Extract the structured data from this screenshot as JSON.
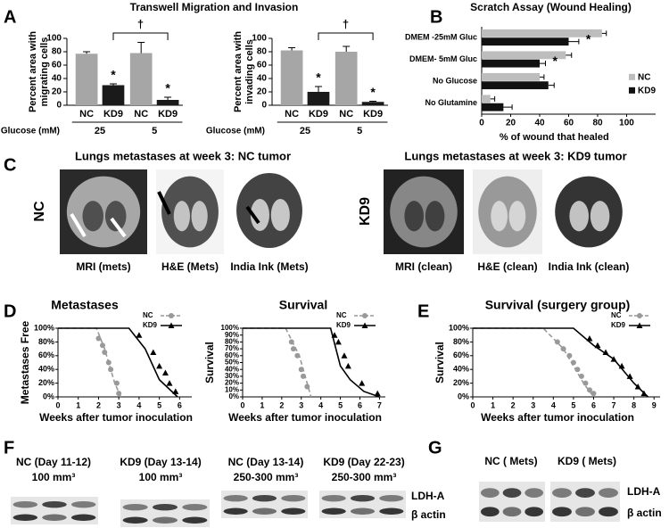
{
  "panel_labels": [
    "A",
    "B",
    "C",
    "D",
    "E",
    "F",
    "G"
  ],
  "panel_a_title": "Transwell Migration and Invasion",
  "chart_data": [
    {
      "type": "bar",
      "y_label": [
        "Percent area with",
        "migrating cells"
      ],
      "categories": [
        "NC",
        "KD9",
        "NC",
        "KD9"
      ],
      "values": [
        77,
        30,
        78,
        8
      ],
      "errors": [
        3,
        2,
        16,
        4
      ],
      "colors": [
        "#a6a6a6",
        "#1a1a1a",
        "#a6a6a6",
        "#1a1a1a"
      ],
      "groups": [
        "25",
        "5"
      ],
      "group_label": "Glucose (mM)",
      "annotations": [
        "*",
        "*",
        "†"
      ],
      "ylim": [
        0,
        100
      ],
      "yticks": [
        0,
        20,
        40,
        60,
        80,
        100
      ]
    },
    {
      "type": "bar",
      "y_label": [
        "Percent area with",
        "invading cells"
      ],
      "categories": [
        "NC",
        "KD9",
        "NC",
        "KD9"
      ],
      "values": [
        82,
        20,
        80,
        5
      ],
      "errors": [
        4,
        8,
        8,
        1
      ],
      "colors": [
        "#a6a6a6",
        "#1a1a1a",
        "#a6a6a6",
        "#1a1a1a"
      ],
      "groups": [
        "25",
        "5"
      ],
      "group_label": "Glucose (mM)",
      "annotations": [
        "*",
        "*",
        "†"
      ],
      "ylim": [
        0,
        100
      ],
      "yticks": [
        0,
        20,
        40,
        60,
        80,
        100
      ]
    },
    {
      "type": "hbar",
      "title": "Scratch Assay (Wound Healing)",
      "x_label": "% of wound that healed",
      "categories": [
        "DMEM -25mM Gluc",
        "DMEM- 5mM Gluc",
        "No Glucose",
        "No Glutamine"
      ],
      "series": [
        {
          "name": "NC",
          "color": "#bdbdbd",
          "values": [
            83,
            58,
            40,
            6
          ],
          "errors": [
            3,
            4,
            3,
            3
          ]
        },
        {
          "name": "KD9",
          "color": "#111111",
          "values": [
            60,
            40,
            46,
            15
          ],
          "errors": [
            7,
            4,
            4,
            6
          ]
        }
      ],
      "annotations": [
        "*",
        "*"
      ],
      "xlim": [
        0,
        120
      ],
      "xticks": [
        0,
        20,
        40,
        60,
        80,
        100
      ],
      "legend": "right"
    },
    {
      "type": "line",
      "title": "Metastases",
      "y_label": "Metastases Free",
      "x_label": "Weeks after tumor inoculation",
      "series": [
        {
          "name": "NC",
          "color": "#999999",
          "dash": true,
          "marker": "circle",
          "x": [
            0,
            1.9,
            2.3,
            2.8,
            3.1
          ],
          "values": [
            100,
            100,
            70,
            20,
            0
          ],
          "points_x": [
            2.0,
            2.2,
            2.3,
            2.5,
            2.6,
            2.9,
            3.0
          ],
          "points_y": [
            85,
            75,
            65,
            50,
            40,
            20,
            5
          ]
        },
        {
          "name": "KD9",
          "color": "#000000",
          "dash": false,
          "marker": "triangle",
          "x": [
            0,
            3.5,
            4.3,
            5.0,
            5.9
          ],
          "values": [
            100,
            100,
            70,
            25,
            0
          ],
          "points_x": [
            4.0,
            4.7,
            5.0,
            5.3,
            5.5,
            5.8
          ],
          "points_y": [
            90,
            65,
            45,
            35,
            20,
            8
          ]
        }
      ],
      "xlim": [
        0,
        6.6
      ],
      "xticks": [
        0,
        1,
        2,
        3,
        4,
        5,
        6
      ],
      "ylim": [
        0,
        100
      ],
      "yticks": [
        {
          "value": 0,
          "label": "0%"
        },
        {
          "value": 20,
          "label": "20%"
        },
        {
          "value": 40,
          "label": "40%"
        },
        {
          "value": 60,
          "label": "60%"
        },
        {
          "value": 80,
          "label": "80%"
        },
        {
          "value": 100,
          "label": "100%"
        }
      ],
      "legend": "upper right"
    },
    {
      "type": "line",
      "title": "Survival",
      "y_label": "Survival",
      "x_label": "Weeks after tumor inoculation",
      "series": [
        {
          "name": "NC",
          "color": "#999999",
          "dash": true,
          "marker": "circle",
          "x": [
            0,
            2.2,
            2.9,
            3.5
          ],
          "values": [
            100,
            100,
            60,
            0
          ],
          "points_x": [
            2.5,
            2.6,
            2.8,
            3.0,
            3.1,
            3.3
          ],
          "points_y": [
            80,
            70,
            60,
            40,
            30,
            15
          ]
        },
        {
          "name": "KD9",
          "color": "#000000",
          "dash": false,
          "marker": "triangle",
          "x": [
            0,
            4.5,
            5.0,
            5.5,
            6.2,
            7.0
          ],
          "values": [
            100,
            100,
            45,
            25,
            8,
            0
          ],
          "points_x": [
            4.7,
            4.9,
            5.2,
            5.4,
            6.1,
            6.9
          ],
          "points_y": [
            90,
            80,
            60,
            45,
            20,
            5
          ]
        }
      ],
      "xlim": [
        0,
        7.3
      ],
      "xticks": [
        0,
        1,
        2,
        3,
        4,
        5,
        6,
        7
      ],
      "ylim": [
        0,
        100
      ],
      "yticks": [
        {
          "value": 0,
          "label": "0%"
        },
        {
          "value": 10,
          "label": "10%"
        },
        {
          "value": 20,
          "label": "20%"
        },
        {
          "value": 30,
          "label": "30%"
        },
        {
          "value": 40,
          "label": "40%"
        },
        {
          "value": 50,
          "label": "50%"
        },
        {
          "value": 60,
          "label": "60%"
        },
        {
          "value": 70,
          "label": "70%"
        },
        {
          "value": 80,
          "label": "80%"
        },
        {
          "value": 90,
          "label": "90%"
        },
        {
          "value": 100,
          "label": "100%"
        }
      ],
      "legend": "upper right"
    },
    {
      "type": "line",
      "title": "Survival (surgery group)",
      "y_label": "Survival",
      "x_label": "Weeks after tumor inoculation",
      "series": [
        {
          "name": "NC",
          "color": "#999999",
          "dash": true,
          "marker": "circle",
          "x": [
            0,
            3.5,
            4.5,
            5.5,
            6.0
          ],
          "values": [
            100,
            100,
            70,
            20,
            0
          ],
          "points_x": [
            4.2,
            4.5,
            4.8,
            5.0,
            5.2,
            5.4,
            5.6,
            5.8,
            6.0
          ],
          "points_y": [
            80,
            70,
            60,
            50,
            40,
            30,
            20,
            10,
            5
          ]
        },
        {
          "name": "KD9",
          "color": "#000000",
          "dash": false,
          "marker": "triangle",
          "x": [
            0,
            5.0,
            6.0,
            7.0,
            8.0,
            8.7
          ],
          "values": [
            100,
            100,
            75,
            55,
            20,
            0
          ],
          "points_x": [
            5.8,
            6.2,
            6.6,
            7.0,
            7.4,
            7.8,
            8.2,
            8.5
          ],
          "points_y": [
            85,
            75,
            65,
            55,
            45,
            30,
            15,
            5
          ]
        }
      ],
      "xlim": [
        0,
        9.3
      ],
      "xticks": [
        0,
        1,
        2,
        3,
        4,
        5,
        6,
        7,
        8,
        9
      ],
      "ylim": [
        0,
        100
      ],
      "yticks": [
        {
          "value": 0,
          "label": "0%"
        },
        {
          "value": 20,
          "label": "20%"
        },
        {
          "value": 40,
          "label": "40%"
        },
        {
          "value": 60,
          "label": "60%"
        },
        {
          "value": 80,
          "label": "80%"
        },
        {
          "value": 100,
          "label": "100%"
        }
      ],
      "legend": "upper right"
    }
  ],
  "panel_c": {
    "titles": [
      "Lungs metastases at week 3: NC tumor",
      "Lungs metastases at week 3: KD9 tumor"
    ],
    "row_labels": [
      "NC",
      "KD9"
    ],
    "captions": [
      "MRI (mets)",
      "H&E (Mets)",
      "India Ink (Mets)",
      "MRI (clean)",
      "H&E (clean)",
      "India Ink (clean)"
    ]
  },
  "panel_f": {
    "headers": [
      [
        "NC (Day 11-12)",
        "100 mm³"
      ],
      [
        "KD9 (Day 13-14)",
        "100 mm³"
      ],
      [
        "NC (Day 13-14)",
        "250-300 mm³"
      ],
      [
        "KD9 (Day 22-23)",
        "250-300 mm³"
      ]
    ],
    "bands": [
      "LDH-A",
      "β actin"
    ]
  },
  "panel_g": {
    "headers": [
      "NC ( Mets)",
      "KD9 ( Mets)"
    ],
    "bands": [
      "LDH-A",
      "β actin"
    ]
  }
}
